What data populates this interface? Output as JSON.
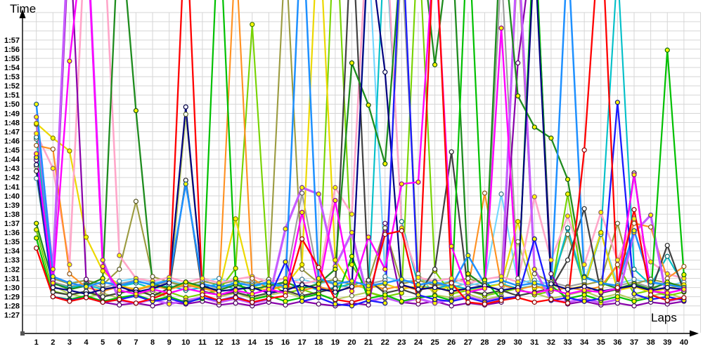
{
  "chart_data": {
    "type": "line",
    "title": "",
    "ylabel": "Time",
    "xlabel": "Laps",
    "grid": true,
    "legend": "none",
    "x": [
      1,
      2,
      3,
      4,
      5,
      6,
      7,
      8,
      9,
      10,
      11,
      12,
      13,
      14,
      15,
      16,
      17,
      18,
      19,
      20,
      21,
      22,
      23,
      24,
      25,
      26,
      27,
      28,
      29,
      30,
      31,
      32,
      33,
      34,
      35,
      36,
      37,
      38,
      39,
      40
    ],
    "y_tick_labels": [
      "1:27",
      "1:28",
      "1:29",
      "1:30",
      "1:31",
      "1:32",
      "1:33",
      "1:34",
      "1:35",
      "1:36",
      "1:37",
      "1:38",
      "1:39",
      "1:40",
      "1:41",
      "1:42",
      "1:43",
      "1:44",
      "1:45",
      "1:46",
      "1:47",
      "1:48",
      "1:49",
      "1:50",
      "1:51",
      "1:52",
      "1:53",
      "1:54",
      "1:55",
      "1:56",
      "1:57"
    ],
    "ylim_seconds": [
      87,
      117
    ],
    "values_unit": "seconds (lap time); values above 117 run off the top of the plot (pit stops)",
    "series": [
      {
        "name": "gray",
        "color": "#9e9e9e",
        "marker": "#ffffff",
        "width": 2.1,
        "values": [
          106.2,
          90.6,
          90.1,
          90.5,
          90.0,
          90.4,
          90.8,
          90.2,
          90.6,
          90.0,
          90.4,
          89.9,
          90.3,
          90.7,
          90.1,
          90.5,
          100.3,
          90.9,
          90.3,
          90.0,
          90.4,
          90.8,
          126,
          91.2,
          90.4,
          90.0,
          90.5,
          90.1,
          125,
          91.0,
          90.3,
          90.6,
          90.1,
          90.5,
          96.0,
          90.2,
          90.6,
          90.0,
          90.4,
          90.1
        ]
      },
      {
        "name": "lightblue",
        "color": "#70d6ff",
        "marker": "#ffffff",
        "width": 2.1,
        "values": [
          101.9,
          90.9,
          90.5,
          90.8,
          90.4,
          90.7,
          91.0,
          90.5,
          90.8,
          90.3,
          90.6,
          91.0,
          90.4,
          90.7,
          90.2,
          90.6,
          90.9,
          90.4,
          90.8,
          90.3,
          127,
          91.2,
          90.6,
          90.9,
          90.4,
          90.7,
          90.2,
          90.6,
          100.2,
          90.5,
          90.8,
          90.3,
          96.4,
          90.7,
          96.0,
          90.4,
          90.9,
          90.5,
          90.2,
          90.6
        ]
      },
      {
        "name": "olive",
        "color": "#9b9b40",
        "marker": "#ffffff",
        "width": 2.1,
        "values": [
          107.8,
          91.0,
          90.4,
          90.8,
          90.3,
          92.0,
          99.4,
          91.2,
          90.6,
          90.2,
          90.7,
          90.3,
          90.8,
          90.4,
          90.9,
          127,
          92.0,
          90.5,
          90.9,
          90.3,
          90.7,
          96.5,
          90.4,
          90.8,
          90.2,
          90.6,
          91.0,
          90.4,
          90.8,
          126,
          91.5,
          90.6,
          95.8,
          90.3,
          90.7,
          97.0,
          90.4,
          90.9,
          90.5,
          90.2
        ]
      },
      {
        "name": "yellowgreen",
        "color": "#b6c95e",
        "marker": "#ffffff",
        "width": 2.1,
        "values": [
          103.2,
          90.2,
          89.3,
          88.9,
          89.4,
          88.8,
          89.2,
          89.6,
          88.9,
          108.9,
          90.4,
          89.0,
          89.4,
          88.8,
          89.2,
          89.5,
          88.9,
          89.3,
          88.7,
          89.1,
          89.5,
          88.8,
          128,
          91.5,
          89.2,
          88.9,
          89.3,
          88.7,
          89.1,
          95.0,
          89.4,
          88.8,
          89.2,
          89.6,
          88.9,
          89.3,
          88.7,
          89.1,
          89.4,
          88.8
        ]
      },
      {
        "name": "cyan",
        "color": "#00bfc8",
        "marker": "#ffffff",
        "width": 2.1,
        "values": [
          106.4,
          90.4,
          90.0,
          90.3,
          89.8,
          90.1,
          90.5,
          89.9,
          90.2,
          89.7,
          90.0,
          90.4,
          89.8,
          90.1,
          90.5,
          89.9,
          90.3,
          89.7,
          90.0,
          90.4,
          89.8,
          129,
          97.2,
          90.2,
          89.9,
          90.3,
          89.8,
          90.1,
          90.4,
          89.9,
          90.2,
          89.8,
          96.5,
          90.1,
          95.8,
          125,
          92.0,
          90.3,
          93.4,
          90.2
        ]
      },
      {
        "name": "limegreen",
        "color": "#76d300",
        "marker": "#ffff00",
        "width": 2.1,
        "values": [
          96.3,
          89.6,
          89.2,
          89.5,
          89.0,
          89.4,
          89.7,
          89.1,
          89.5,
          88.9,
          89.3,
          89.7,
          92.1,
          118.7,
          90.5,
          89.4,
          89.8,
          89.2,
          132,
          92.5,
          89.5,
          89.0,
          89.4,
          129,
          91.8,
          89.3,
          89.7,
          89.1,
          89.5,
          89.9,
          89.2,
          89.6,
          100.2,
          89.4,
          89.8,
          92.5,
          89.3,
          89.7,
          89.1,
          89.5
        ]
      },
      {
        "name": "yellow",
        "color": "#ecd800",
        "marker": "#ffff00",
        "width": 2.2,
        "values": [
          107.9,
          106.3,
          104.9,
          95.5,
          91.8,
          90.2,
          89.8,
          90.3,
          89.9,
          90.4,
          90.0,
          89.6,
          97.5,
          90.1,
          89.7,
          90.2,
          92.5,
          131,
          93.0,
          90.3,
          89.9,
          90.4,
          89.8,
          90.2,
          89.7,
          90.1,
          89.6,
          90.0,
          90.4,
          97.2,
          89.9,
          90.3,
          89.8,
          90.2,
          96.0,
          89.7,
          90.1,
          89.5,
          89.9,
          90.3
        ]
      },
      {
        "name": "pink",
        "color": "#ffa6c9",
        "marker": "#ffff00",
        "width": 2.6,
        "values": [
          106.8,
          103.0,
          92.5,
          131,
          131,
          93.5,
          91.0,
          90.7,
          91.1,
          90.6,
          91.0,
          90.5,
          90.9,
          91.2,
          90.6,
          91.0,
          90.4,
          90.8,
          100.9,
          98.0,
          131,
          131,
          96.5,
          91.1,
          90.7,
          91.0,
          90.5,
          90.9,
          91.2,
          90.6,
          99.9,
          93.0,
          97.8,
          92.5,
          98.2,
          93.0,
          97.5,
          92.8,
          91.5,
          91.0
        ]
      },
      {
        "name": "orange",
        "color": "#ff9020",
        "marker": "#ffffff",
        "width": 2.1,
        "values": [
          105.5,
          105.1,
          91.5,
          90.0,
          89.6,
          90.1,
          89.7,
          90.2,
          89.8,
          90.3,
          89.9,
          89.5,
          127,
          91.0,
          89.8,
          90.2,
          89.7,
          90.1,
          89.6,
          90.0,
          90.4,
          89.8,
          90.2,
          89.7,
          90.1,
          89.5,
          89.9,
          100.3,
          90.3,
          89.8,
          90.2,
          89.6,
          90.0,
          89.7,
          90.1,
          92.5,
          97.0,
          96.6,
          91.0,
          92.3
        ]
      },
      {
        "name": "darkgray",
        "color": "#414141",
        "marker": "#ffffff",
        "width": 2.2,
        "values": [
          102.7,
          89.5,
          89.2,
          89.6,
          89.0,
          89.4,
          89.8,
          89.1,
          89.9,
          101.7,
          89.6,
          89.2,
          89.5,
          89.0,
          89.4,
          89.7,
          89.1,
          89.5,
          89.9,
          130,
          90.8,
          89.4,
          89.8,
          89.2,
          92.0,
          104.8,
          89.6,
          89.3,
          89.7,
          89.1,
          89.5,
          89.9,
          93.0,
          98.6,
          89.4,
          89.8,
          102.5,
          89.5,
          94.6,
          89.6
        ]
      },
      {
        "name": "purple",
        "color": "#8800aa",
        "marker": "#ffffff",
        "width": 2.2,
        "values": [
          103.9,
          90.8,
          129,
          90.9,
          88.4,
          88.1,
          88.3,
          88.0,
          88.4,
          88.2,
          88.5,
          88.1,
          88.3,
          88.0,
          88.4,
          88.1,
          88.5,
          88.2,
          88.0,
          88.3,
          88.1,
          97.0,
          88.4,
          88.2,
          88.5,
          88.0,
          88.3,
          88.1,
          88.4,
          114.5,
          129,
          91.5,
          88.2,
          88.5,
          88.1,
          88.3,
          88.0,
          88.4,
          88.2,
          88.5
        ]
      },
      {
        "name": "violet",
        "color": "#c65bff",
        "marker": "#ffff00",
        "width": 3.2,
        "values": [
          108.6,
          92.0,
          131,
          131,
          93.0,
          88.6,
          88.3,
          88.7,
          88.2,
          88.6,
          88.9,
          88.4,
          88.8,
          88.3,
          88.7,
          96.4,
          100.9,
          100.2,
          92.3,
          96.0,
          88.5,
          88.9,
          88.4,
          88.8,
          88.3,
          88.7,
          89.0,
          88.5,
          88.9,
          128,
          92.0,
          88.6,
          88.4,
          88.8,
          88.3,
          88.7,
          96.0,
          97.9,
          88.5,
          88.9
        ]
      },
      {
        "name": "darkgreen",
        "color": "#1e8c1e",
        "marker": "#ffff00",
        "width": 2.3,
        "values": [
          97.0,
          90.5,
          89.8,
          90.2,
          91.0,
          131,
          109.3,
          90.4,
          89.9,
          90.6,
          90.1,
          89.7,
          90.3,
          89.8,
          90.2,
          90.6,
          89.9,
          90.4,
          92.0,
          114.5,
          109.9,
          103.5,
          127,
          131,
          114.3,
          129,
          91.5,
          90.2,
          130,
          110.9,
          107.5,
          106.3,
          101.8,
          91.2,
          90.5,
          89.9,
          90.4,
          89.8,
          90.6,
          90.0
        ]
      },
      {
        "name": "green",
        "color": "#00c000",
        "marker": "#ffff00",
        "width": 2.2,
        "values": [
          95.4,
          89.0,
          88.7,
          89.1,
          88.5,
          88.9,
          89.2,
          88.6,
          89.0,
          88.4,
          88.8,
          131,
          91.0,
          88.7,
          89.1,
          88.5,
          88.9,
          89.3,
          88.6,
          93.4,
          88.8,
          89.2,
          88.5,
          88.9,
          89.1,
          88.6,
          130,
          90.8,
          88.7,
          89.0,
          130,
          90.2,
          88.8,
          89.2,
          88.6,
          89.0,
          88.5,
          88.9,
          115.9,
          91.4
        ]
      },
      {
        "name": "dodgerblue",
        "color": "#1e90ff",
        "marker": "#ffff00",
        "width": 2.5,
        "values": [
          110.0,
          91.2,
          90.5,
          90.1,
          90.6,
          90.2,
          90.7,
          90.3,
          90.8,
          101.3,
          90.4,
          90.0,
          90.5,
          90.2,
          90.6,
          90.1,
          131,
          91.0,
          90.4,
          90.7,
          90.2,
          90.5,
          90.9,
          90.3,
          90.6,
          90.1,
          93.5,
          90.4,
          90.8,
          90.2,
          90.5,
          90.0,
          127,
          91.1,
          90.5,
          90.2,
          96.2,
          90.6,
          90.3,
          90.0
        ]
      },
      {
        "name": "navy",
        "color": "#000080",
        "marker": "#ffffff",
        "width": 2.2,
        "values": [
          103.4,
          90.0,
          89.7,
          89.3,
          89.8,
          90.1,
          89.5,
          89.9,
          90.5,
          109.7,
          90.2,
          89.6,
          89.8,
          90.0,
          89.4,
          89.7,
          90.3,
          89.9,
          89.5,
          90.1,
          128,
          113.5,
          90.3,
          89.8,
          90.0,
          89.6,
          89.9,
          90.2,
          89.7,
          90.0,
          127,
          90.4,
          89.8,
          90.1,
          89.6,
          89.9,
          90.2,
          89.7,
          90.0,
          89.8
        ]
      },
      {
        "name": "blue",
        "color": "#1a1aff",
        "marker": "#ffff00",
        "width": 2.3,
        "values": [
          104.2,
          89.0,
          88.6,
          88.9,
          88.4,
          88.7,
          89.1,
          88.5,
          88.8,
          88.3,
          88.9,
          88.6,
          89.0,
          88.4,
          88.8,
          92.8,
          88.5,
          88.9,
          88.2,
          88.0,
          88.6,
          88.3,
          130,
          89.2,
          88.7,
          88.5,
          88.9,
          88.4,
          88.8,
          89.0,
          95.3,
          88.6,
          88.9,
          88.5,
          88.8,
          110.2,
          89.3,
          88.7,
          89.0,
          88.6
        ]
      },
      {
        "name": "magenta",
        "color": "#ff00ff",
        "marker": "#ffff00",
        "width": 2.4,
        "values": [
          104.6,
          90.5,
          114.7,
          131,
          92.3,
          89.7,
          89.3,
          89.8,
          89.4,
          89.9,
          89.5,
          89.2,
          89.7,
          89.3,
          89.8,
          89.4,
          98.2,
          89.9,
          99.5,
          89.6,
          95.5,
          92.0,
          101.3,
          101.5,
          128,
          94.5,
          89.5,
          89.9,
          118.3,
          89.7,
          89.4,
          89.8,
          89.3,
          89.7,
          89.5,
          89.9,
          102.3,
          89.6,
          89.4,
          89.8
        ]
      },
      {
        "name": "red",
        "color": "#ff0000",
        "marker": "#ffffff",
        "width": 2.3,
        "values": [
          94.3,
          89.0,
          88.5,
          88.9,
          88.4,
          88.7,
          88.3,
          88.8,
          89.5,
          131,
          89.2,
          88.6,
          88.9,
          88.4,
          88.8,
          89.1,
          95.3,
          92.2,
          88.7,
          88.4,
          88.9,
          95.8,
          96.2,
          88.6,
          130,
          90.5,
          88.4,
          88.2,
          88.6,
          88.9,
          88.4,
          88.7,
          88.3,
          105.0,
          131,
          90.0,
          98.5,
          89.2,
          88.6,
          88.9
        ]
      }
    ]
  }
}
